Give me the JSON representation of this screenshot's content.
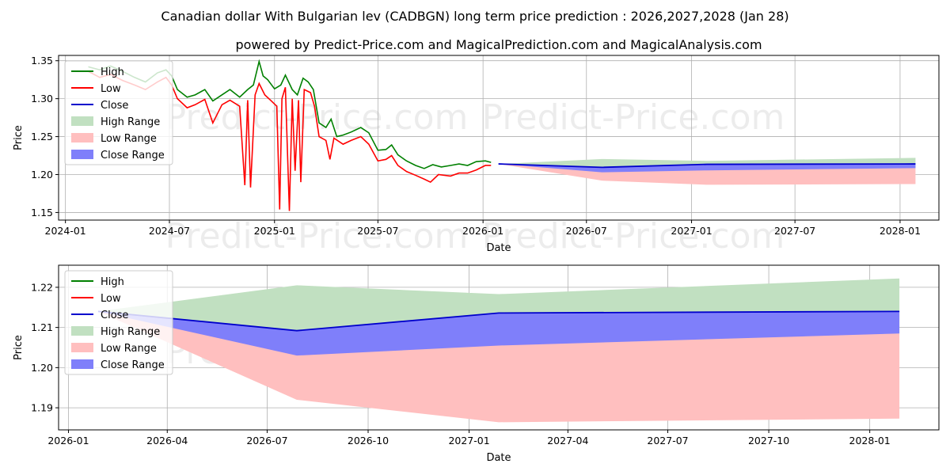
{
  "header": {
    "title": "Canadian dollar With Bulgarian lev (CADBGN) long term price prediction : 2026,2027,2028 (Jan 28)",
    "subtitle": "powered by Predict-Price.com and MagicalPrediction.com and MagicalAnalysis.com"
  },
  "watermark": "Predict-Price.com",
  "colors": {
    "high": "#008000",
    "low": "#ff0000",
    "close": "#0000cc",
    "high_range": "#c1e0c1",
    "low_range": "#ffbfbf",
    "close_range": "#7f7ffa",
    "grid": "#b0b0b0"
  },
  "legend": [
    "High",
    "Low",
    "Close",
    "High Range",
    "Low Range",
    "Close Range"
  ],
  "chart_data": [
    {
      "type": "line",
      "name": "top-chart",
      "xlabel": "Date",
      "ylabel": "Price",
      "ylim": [
        1.14,
        1.357
      ],
      "xlim": [
        "2023-12-20",
        "2028-03-09"
      ],
      "xticks": [
        {
          "date": "2024-01-01",
          "label": "2024-01"
        },
        {
          "date": "2024-07-01",
          "label": "2024-07"
        },
        {
          "date": "2025-01-01",
          "label": "2025-01"
        },
        {
          "date": "2025-07-01",
          "label": "2025-07"
        },
        {
          "date": "2026-01-01",
          "label": "2026-01"
        },
        {
          "date": "2026-07-01",
          "label": "2026-07"
        },
        {
          "date": "2027-01-01",
          "label": "2027-01"
        },
        {
          "date": "2027-07-01",
          "label": "2027-07"
        },
        {
          "date": "2028-01-01",
          "label": "2028-01"
        }
      ],
      "yticks": [
        1.15,
        1.2,
        1.25,
        1.3,
        1.35
      ],
      "history_high": [
        [
          "2024-02-10",
          1.342
        ],
        [
          "2024-03-01",
          1.338
        ],
        [
          "2024-03-20",
          1.343
        ],
        [
          "2024-04-10",
          1.336
        ],
        [
          "2024-05-01",
          1.328
        ],
        [
          "2024-05-20",
          1.322
        ],
        [
          "2024-06-10",
          1.334
        ],
        [
          "2024-06-25",
          1.338
        ],
        [
          "2024-07-05",
          1.33
        ],
        [
          "2024-07-15",
          1.312
        ],
        [
          "2024-08-01",
          1.302
        ],
        [
          "2024-08-15",
          1.305
        ],
        [
          "2024-09-01",
          1.312
        ],
        [
          "2024-09-15",
          1.297
        ],
        [
          "2024-10-01",
          1.305
        ],
        [
          "2024-10-15",
          1.312
        ],
        [
          "2024-11-01",
          1.302
        ],
        [
          "2024-11-15",
          1.312
        ],
        [
          "2024-11-25",
          1.318
        ],
        [
          "2024-12-05",
          1.349
        ],
        [
          "2024-12-12",
          1.33
        ],
        [
          "2024-12-20",
          1.325
        ],
        [
          "2025-01-01",
          1.313
        ],
        [
          "2025-01-12",
          1.318
        ],
        [
          "2025-01-20",
          1.331
        ],
        [
          "2025-02-01",
          1.312
        ],
        [
          "2025-02-10",
          1.305
        ],
        [
          "2025-02-20",
          1.327
        ],
        [
          "2025-03-01",
          1.322
        ],
        [
          "2025-03-10",
          1.312
        ],
        [
          "2025-03-20",
          1.268
        ],
        [
          "2025-04-01",
          1.262
        ],
        [
          "2025-04-10",
          1.273
        ],
        [
          "2025-04-20",
          1.25
        ],
        [
          "2025-05-01",
          1.252
        ],
        [
          "2025-05-15",
          1.256
        ],
        [
          "2025-06-01",
          1.262
        ],
        [
          "2025-06-15",
          1.255
        ],
        [
          "2025-07-01",
          1.232
        ],
        [
          "2025-07-15",
          1.233
        ],
        [
          "2025-07-25",
          1.239
        ],
        [
          "2025-08-05",
          1.226
        ],
        [
          "2025-08-20",
          1.218
        ],
        [
          "2025-09-05",
          1.212
        ],
        [
          "2025-09-20",
          1.208
        ],
        [
          "2025-10-05",
          1.213
        ],
        [
          "2025-10-20",
          1.21
        ],
        [
          "2025-11-05",
          1.212
        ],
        [
          "2025-11-20",
          1.214
        ],
        [
          "2025-12-05",
          1.212
        ],
        [
          "2025-12-20",
          1.217
        ],
        [
          "2026-01-05",
          1.218
        ],
        [
          "2026-01-15",
          1.216
        ]
      ],
      "history_low": [
        [
          "2024-02-10",
          1.336
        ],
        [
          "2024-03-01",
          1.328
        ],
        [
          "2024-03-20",
          1.332
        ],
        [
          "2024-04-10",
          1.324
        ],
        [
          "2024-05-01",
          1.318
        ],
        [
          "2024-05-20",
          1.312
        ],
        [
          "2024-06-10",
          1.322
        ],
        [
          "2024-06-25",
          1.328
        ],
        [
          "2024-07-05",
          1.318
        ],
        [
          "2024-07-15",
          1.3
        ],
        [
          "2024-08-01",
          1.288
        ],
        [
          "2024-08-15",
          1.292
        ],
        [
          "2024-09-01",
          1.299
        ],
        [
          "2024-09-15",
          1.268
        ],
        [
          "2024-10-01",
          1.292
        ],
        [
          "2024-10-15",
          1.298
        ],
        [
          "2024-11-01",
          1.29
        ],
        [
          "2024-11-10",
          1.186
        ],
        [
          "2024-11-15",
          1.298
        ],
        [
          "2024-11-20",
          1.183
        ],
        [
          "2024-11-28",
          1.305
        ],
        [
          "2024-12-05",
          1.32
        ],
        [
          "2024-12-15",
          1.305
        ],
        [
          "2024-12-25",
          1.298
        ],
        [
          "2025-01-05",
          1.29
        ],
        [
          "2025-01-10",
          1.154
        ],
        [
          "2025-01-14",
          1.3
        ],
        [
          "2025-01-20",
          1.315
        ],
        [
          "2025-01-27",
          1.152
        ],
        [
          "2025-02-01",
          1.3
        ],
        [
          "2025-02-06",
          1.205
        ],
        [
          "2025-02-12",
          1.298
        ],
        [
          "2025-02-16",
          1.19
        ],
        [
          "2025-02-22",
          1.312
        ],
        [
          "2025-03-05",
          1.308
        ],
        [
          "2025-03-12",
          1.29
        ],
        [
          "2025-03-20",
          1.25
        ],
        [
          "2025-04-01",
          1.245
        ],
        [
          "2025-04-08",
          1.22
        ],
        [
          "2025-04-15",
          1.248
        ],
        [
          "2025-05-01",
          1.24
        ],
        [
          "2025-05-15",
          1.245
        ],
        [
          "2025-06-01",
          1.25
        ],
        [
          "2025-06-15",
          1.24
        ],
        [
          "2025-07-01",
          1.218
        ],
        [
          "2025-07-15",
          1.22
        ],
        [
          "2025-07-25",
          1.225
        ],
        [
          "2025-08-05",
          1.212
        ],
        [
          "2025-08-20",
          1.204
        ],
        [
          "2025-09-05",
          1.199
        ],
        [
          "2025-09-20",
          1.194
        ],
        [
          "2025-10-01",
          1.19
        ],
        [
          "2025-10-15",
          1.2
        ],
        [
          "2025-11-05",
          1.198
        ],
        [
          "2025-11-20",
          1.202
        ],
        [
          "2025-12-05",
          1.202
        ],
        [
          "2025-12-20",
          1.206
        ],
        [
          "2026-01-05",
          1.212
        ],
        [
          "2026-01-15",
          1.212
        ]
      ],
      "forecast_dates": [
        "2026-01-28",
        "2026-07-28",
        "2027-01-28",
        "2028-01-28"
      ],
      "high_range": [
        [
          1.214,
          1.214
        ],
        [
          1.2205,
          1.203
        ],
        [
          1.218,
          1.2055
        ],
        [
          1.222,
          1.2085
        ]
      ],
      "low_range": [
        [
          1.214,
          1.214
        ],
        [
          1.209,
          1.192
        ],
        [
          1.206,
          1.1865
        ],
        [
          1.2085,
          1.1875
        ]
      ],
      "close_range": [
        [
          1.214,
          1.214
        ],
        [
          1.2095,
          1.203
        ],
        [
          1.2135,
          1.2055
        ],
        [
          1.214,
          1.2085
        ]
      ],
      "close_line": [
        1.214,
        1.2095,
        1.2135,
        1.214
      ]
    },
    {
      "type": "area",
      "name": "bottom-chart",
      "xlabel": "Date",
      "ylabel": "Price",
      "ylim": [
        1.1845,
        1.2255
      ],
      "xlim": [
        "2025-12-23",
        "2028-03-04"
      ],
      "xticks": [
        {
          "date": "2026-01-01",
          "label": "2026-01"
        },
        {
          "date": "2026-04-01",
          "label": "2026-04"
        },
        {
          "date": "2026-07-01",
          "label": "2026-07"
        },
        {
          "date": "2026-10-01",
          "label": "2026-10"
        },
        {
          "date": "2027-01-01",
          "label": "2027-01"
        },
        {
          "date": "2027-04-01",
          "label": "2027-04"
        },
        {
          "date": "2027-07-01",
          "label": "2027-07"
        },
        {
          "date": "2027-10-01",
          "label": "2027-10"
        },
        {
          "date": "2028-01-01",
          "label": "2028-01"
        }
      ],
      "yticks": [
        1.19,
        1.2,
        1.21,
        1.22
      ],
      "yticklabels": [
        "1.19",
        "1.20",
        "1.21",
        "1.22"
      ],
      "forecast_dates": [
        "2026-01-28",
        "2026-07-28",
        "2027-01-28",
        "2028-01-28"
      ],
      "high_range": [
        [
          1.214,
          1.214
        ],
        [
          1.2205,
          1.203
        ],
        [
          1.2183,
          1.2055
        ],
        [
          1.2222,
          1.2085
        ]
      ],
      "low_range": [
        [
          1.214,
          1.214
        ],
        [
          1.2093,
          1.192
        ],
        [
          1.2065,
          1.1864
        ],
        [
          1.2085,
          1.1873
        ]
      ],
      "close_range": [
        [
          1.214,
          1.214
        ],
        [
          1.2092,
          1.203
        ],
        [
          1.2136,
          1.2055
        ],
        [
          1.214,
          1.2085
        ]
      ],
      "close_line": [
        1.214,
        1.2092,
        1.2136,
        1.214
      ]
    }
  ]
}
